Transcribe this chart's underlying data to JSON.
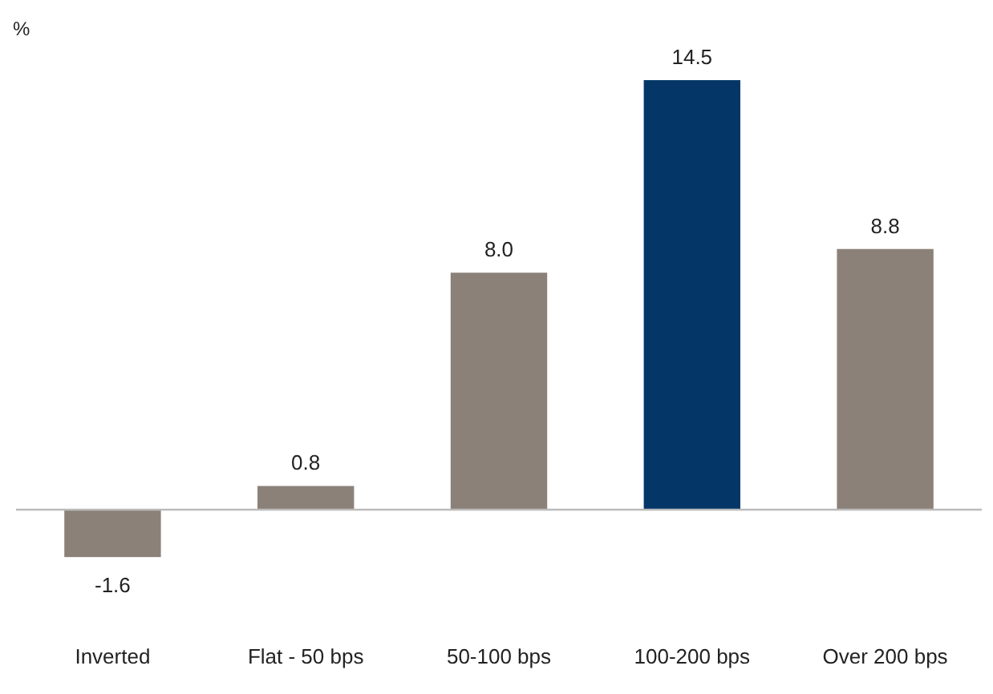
{
  "chart_data": {
    "type": "bar",
    "ylabel": "%",
    "categories": [
      "Inverted",
      "Flat - 50 bps",
      "50-100 bps",
      "100-200 bps",
      "Over 200 bps"
    ],
    "values": [
      -1.6,
      0.8,
      8.0,
      14.5,
      8.8
    ],
    "value_labels": [
      "-1.6",
      "0.8",
      "8.0",
      "14.5",
      "8.8"
    ],
    "colors": [
      "#8c8178",
      "#8c8178",
      "#8c8178",
      "#043768",
      "#8c8178"
    ],
    "data_labels": true
  }
}
